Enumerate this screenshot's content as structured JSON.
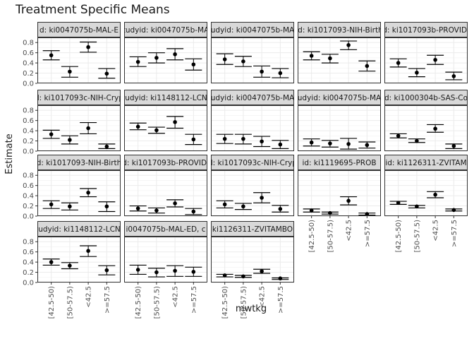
{
  "chart_data": {
    "type": "scatter",
    "title": "Treatment Specific Means",
    "xlabel": "mwtkg",
    "ylabel": "Estimate",
    "categories": [
      "[42.5-50)",
      "[50-57.5)",
      "<42.5",
      ">=57.5"
    ],
    "y_ticks": [
      "0.0",
      "0.2",
      "0.4",
      "0.6",
      "0.8"
    ],
    "ylim": [
      0,
      0.9
    ],
    "grid": true,
    "error_bars": true,
    "facet_layout": {
      "columns": 5,
      "rows": 4
    },
    "panels": [
      {
        "strip": "d: ki0047075b-MAL-E",
        "estimate": [
          0.55,
          0.23,
          0.71,
          0.19
        ],
        "lower": [
          0.46,
          0.12,
          0.61,
          0.1
        ],
        "upper": [
          0.64,
          0.33,
          0.81,
          0.29
        ]
      },
      {
        "strip": "tudyid: ki0047075b-MA",
        "estimate": [
          0.42,
          0.5,
          0.57,
          0.37
        ],
        "lower": [
          0.33,
          0.4,
          0.46,
          0.26
        ],
        "upper": [
          0.52,
          0.6,
          0.68,
          0.48
        ]
      },
      {
        "strip": "udyid: ki0047075b-MA",
        "estimate": [
          0.47,
          0.43,
          0.23,
          0.2
        ],
        "lower": [
          0.37,
          0.33,
          0.12,
          0.11
        ],
        "upper": [
          0.58,
          0.53,
          0.34,
          0.29
        ]
      },
      {
        "strip": "id: ki1017093-NIH-Birth",
        "estimate": [
          0.54,
          0.49,
          0.75,
          0.34
        ],
        "lower": [
          0.46,
          0.4,
          0.66,
          0.24
        ],
        "upper": [
          0.62,
          0.57,
          0.83,
          0.44
        ]
      },
      {
        "strip": "id: ki1017093b-PROVIDE",
        "estimate": [
          0.4,
          0.21,
          0.46,
          0.14
        ],
        "lower": [
          0.32,
          0.13,
          0.37,
          0.07
        ],
        "upper": [
          0.48,
          0.29,
          0.55,
          0.22
        ]
      },
      {
        "strip": "d: ki1017093c-NIH-Cryp",
        "estimate": [
          0.33,
          0.22,
          0.45,
          0.09
        ],
        "lower": [
          0.25,
          0.14,
          0.34,
          0.05
        ],
        "upper": [
          0.41,
          0.3,
          0.56,
          0.14
        ]
      },
      {
        "strip": "tudyid: ki1148112-LCNI",
        "estimate": [
          0.48,
          0.41,
          0.57,
          0.23
        ],
        "lower": [
          0.42,
          0.35,
          0.45,
          0.13
        ],
        "upper": [
          0.55,
          0.47,
          0.68,
          0.33
        ]
      },
      {
        "strip": "udyid: ki0047075b-MA",
        "estimate": [
          0.24,
          0.24,
          0.19,
          0.13
        ],
        "lower": [
          0.15,
          0.14,
          0.09,
          0.05
        ],
        "upper": [
          0.33,
          0.33,
          0.29,
          0.21
        ]
      },
      {
        "strip": "udyid: ki0047075b-MA",
        "estimate": [
          0.17,
          0.15,
          0.14,
          0.12
        ],
        "lower": [
          0.1,
          0.08,
          0.04,
          0.06
        ],
        "upper": [
          0.24,
          0.21,
          0.25,
          0.18
        ]
      },
      {
        "strip": "d: ki1000304b-SAS-Co",
        "estimate": [
          0.3,
          0.2,
          0.44,
          0.1
        ],
        "lower": [
          0.26,
          0.17,
          0.37,
          0.05
        ],
        "upper": [
          0.34,
          0.24,
          0.52,
          0.14
        ]
      },
      {
        "strip": "d: ki1017093-NIH-Birth",
        "estimate": [
          0.23,
          0.19,
          0.46,
          0.19
        ],
        "lower": [
          0.15,
          0.12,
          0.38,
          0.09
        ],
        "upper": [
          0.3,
          0.26,
          0.54,
          0.28
        ]
      },
      {
        "strip": "id: ki1017093b-PROVIDE",
        "estimate": [
          0.15,
          0.11,
          0.25,
          0.09
        ],
        "lower": [
          0.1,
          0.06,
          0.18,
          0.03
        ],
        "upper": [
          0.2,
          0.16,
          0.32,
          0.15
        ]
      },
      {
        "strip": "d: ki1017093c-NIH-Cryp",
        "estimate": [
          0.23,
          0.19,
          0.36,
          0.14
        ],
        "lower": [
          0.16,
          0.13,
          0.26,
          0.08
        ],
        "upper": [
          0.3,
          0.25,
          0.46,
          0.21
        ]
      },
      {
        "strip": "id: ki1119695-PROB",
        "estimate": [
          0.11,
          0.06,
          0.3,
          0.04
        ],
        "lower": [
          0.08,
          0.04,
          0.22,
          0.02
        ],
        "upper": [
          0.14,
          0.08,
          0.38,
          0.06
        ]
      },
      {
        "strip": "id: ki1126311-ZVITAM",
        "estimate": [
          0.26,
          0.19,
          0.42,
          0.12
        ],
        "lower": [
          0.23,
          0.16,
          0.36,
          0.1
        ],
        "upper": [
          0.29,
          0.21,
          0.48,
          0.14
        ]
      },
      {
        "strip": "tudyid: ki1148112-LCNI",
        "estimate": [
          0.4,
          0.33,
          0.62,
          0.24
        ],
        "lower": [
          0.34,
          0.27,
          0.51,
          0.15
        ],
        "upper": [
          0.46,
          0.39,
          0.72,
          0.33
        ]
      },
      {
        "strip": "i0047075b-MAL-ED, c",
        "estimate": [
          0.25,
          0.2,
          0.23,
          0.21
        ],
        "lower": [
          0.16,
          0.11,
          0.12,
          0.12
        ],
        "upper": [
          0.34,
          0.28,
          0.33,
          0.3
        ]
      },
      {
        "strip": "ki1126311-ZVITAMBO",
        "estimate": [
          0.14,
          0.12,
          0.22,
          0.08
        ],
        "lower": [
          0.11,
          0.1,
          0.18,
          0.06
        ],
        "upper": [
          0.16,
          0.14,
          0.26,
          0.09
        ]
      }
    ]
  }
}
